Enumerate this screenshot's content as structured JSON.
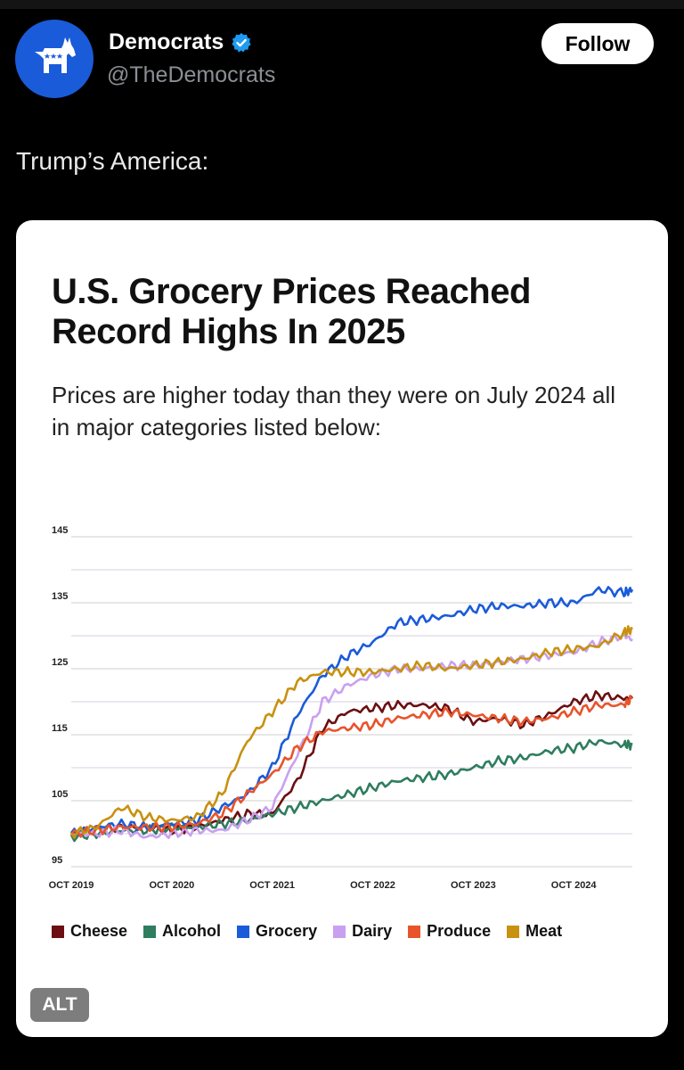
{
  "account": {
    "name": "Democrats",
    "handle": "@TheDemocrats",
    "follow_label": "Follow",
    "avatar_icon": "donkey-icon",
    "avatar_color": "#1a5bd9",
    "verified_color": "#1d9bf0"
  },
  "post": {
    "text": "Trump’s America:",
    "alt_label": "ALT"
  },
  "card": {
    "title": "U.S. Grocery Prices Reached Record Highs In 2025",
    "subtitle": "Prices are higher today than they were on July 2024 all in major categories listed below:"
  },
  "chart_data": {
    "type": "line",
    "title": "U.S. Grocery Prices Reached Record Highs In 2025",
    "subtitle": "Prices are higher today than they were on July 2024 all in major categories listed below:",
    "x_ticks": [
      "OCT 2019",
      "OCT 2020",
      "OCT 2021",
      "OCT 2022",
      "OCT 2023",
      "OCT 2024"
    ],
    "x_range": [
      "2019-10",
      "2025-05"
    ],
    "y_ticks": [
      95,
      105,
      115,
      125,
      135,
      145
    ],
    "ylim": [
      95,
      145
    ],
    "grid": true,
    "legend_position": "bottom",
    "x": [
      "2019-10",
      "2020-01",
      "2020-04",
      "2020-07",
      "2020-10",
      "2021-01",
      "2021-04",
      "2021-07",
      "2021-10",
      "2022-01",
      "2022-04",
      "2022-07",
      "2022-10",
      "2023-01",
      "2023-04",
      "2023-07",
      "2023-10",
      "2024-01",
      "2024-04",
      "2024-07",
      "2024-10",
      "2025-01",
      "2025-04",
      "2025-05"
    ],
    "series": [
      {
        "name": "Cheese",
        "color": "#6b0f12",
        "values": [
          100,
          100.5,
          101,
          101,
          100.5,
          101,
          102,
          103,
          103,
          108,
          116,
          118.5,
          119,
          119.5,
          119.5,
          119,
          117,
          117.5,
          116.5,
          118,
          120,
          121,
          120.5,
          120.5
        ]
      },
      {
        "name": "Alcohol",
        "color": "#2e7d5f",
        "values": [
          99.5,
          100,
          100.5,
          100.5,
          101,
          101,
          101.5,
          102,
          103,
          104,
          105,
          106,
          107,
          108,
          108.5,
          109,
          110,
          111,
          111.5,
          112.5,
          113,
          114,
          113.5,
          113.5
        ]
      },
      {
        "name": "Grocery",
        "color": "#1a5bd9",
        "values": [
          100,
          101,
          101.5,
          101,
          101.5,
          102,
          104,
          106,
          110,
          118,
          124,
          127,
          129,
          132,
          132.5,
          133,
          134,
          134.5,
          134.5,
          135,
          135,
          137,
          136.5,
          137
        ]
      },
      {
        "name": "Dairy",
        "color": "#c9a0f0",
        "values": [
          100,
          100,
          100.5,
          99.5,
          100,
          100.5,
          100.5,
          102,
          104,
          112,
          120,
          122.5,
          124,
          125,
          125,
          125.5,
          125.5,
          126,
          126.5,
          127,
          127.5,
          129,
          130,
          129.5
        ]
      },
      {
        "name": "Produce",
        "color": "#e8542a",
        "values": [
          100,
          100.5,
          101,
          101,
          101,
          101.5,
          103,
          106,
          109,
          113,
          115.5,
          116,
          116.5,
          117.5,
          118,
          118.5,
          118,
          117.5,
          117,
          117.5,
          118.5,
          119.5,
          119.5,
          120.5
        ]
      },
      {
        "name": "Meat",
        "color": "#c8910f",
        "values": [
          100,
          101,
          104,
          102.5,
          102,
          102.5,
          106,
          114,
          118.5,
          123,
          124.5,
          124.5,
          124.5,
          125,
          125.5,
          125,
          125.5,
          126,
          126.5,
          127.5,
          128,
          128.5,
          130.5,
          131
        ]
      }
    ]
  }
}
